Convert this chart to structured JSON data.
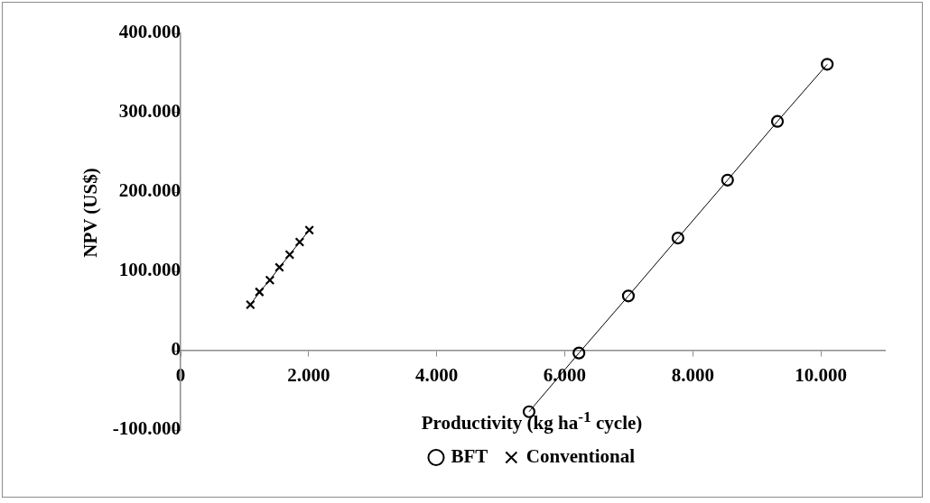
{
  "chart_data": {
    "type": "line",
    "xlabel": "Productivity (kg ha$^{-1}$ cycle)",
    "ylabel": "NPV (US$)",
    "xlim": [
      0,
      11000
    ],
    "xticks": [
      0,
      {
        "value": 2000,
        "label": "2.000"
      },
      {
        "value": 4000,
        "label": "4.000"
      },
      {
        "value": 6000,
        "label": "6.000"
      },
      {
        "value": 8000,
        "label": "8.000"
      },
      {
        "value": 10000,
        "label": "10.000"
      }
    ],
    "ylim": [
      -100000,
      400000
    ],
    "yticks": [
      {
        "value": -100000,
        "label": "-100.000"
      },
      0,
      {
        "value": 100000,
        "label": "100.000"
      },
      {
        "value": 200000,
        "label": "200.000"
      },
      {
        "value": 300000,
        "label": "300.000"
      },
      {
        "value": 400000,
        "label": "400.000"
      }
    ],
    "grid": false,
    "legend": "bottom",
    "line_style": "solid",
    "series": [
      {
        "name": "BFT",
        "color": "#000000",
        "marker": "circle",
        "x": [
          5443,
          6222,
          6994,
          7768,
          8543,
          9322,
          10100
        ],
        "values": [
          -77000,
          -3000,
          69000,
          142000,
          215000,
          289000,
          361000
        ]
      },
      {
        "name": "Conventional",
        "color": "#000000",
        "marker": "cross",
        "x": [
          1091,
          1232,
          1395,
          1544,
          1704,
          1860,
          2011
        ],
        "values": [
          58000,
          74000,
          89000,
          105000,
          121000,
          137000,
          152000
        ]
      }
    ]
  }
}
